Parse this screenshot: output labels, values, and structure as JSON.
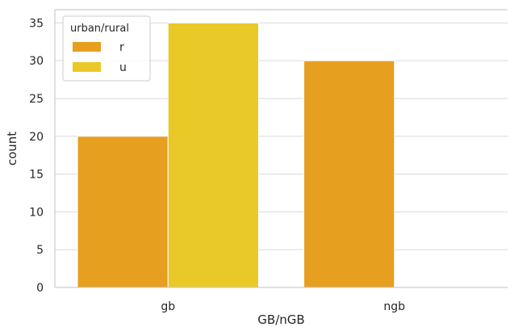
{
  "chart_data": {
    "type": "bar",
    "categories": [
      "gb",
      "ngb"
    ],
    "series": [
      {
        "name": "r",
        "values": [
          20,
          30
        ],
        "color": "#E69F1E"
      },
      {
        "name": "u",
        "values": [
          35,
          0
        ],
        "color": "#E8C927"
      }
    ],
    "xlabel": "GB/nGB",
    "ylabel": "count",
    "ylim": [
      0,
      36.75
    ],
    "yticks": [
      0,
      5,
      10,
      15,
      20,
      25,
      30,
      35
    ],
    "grid": true,
    "grid_axis": "y",
    "legend": {
      "title": "urban/rural",
      "placement": "top-left"
    },
    "colors": {
      "grid": "#d9d9d9",
      "spine": "#cccccc",
      "text": "#262626"
    }
  }
}
